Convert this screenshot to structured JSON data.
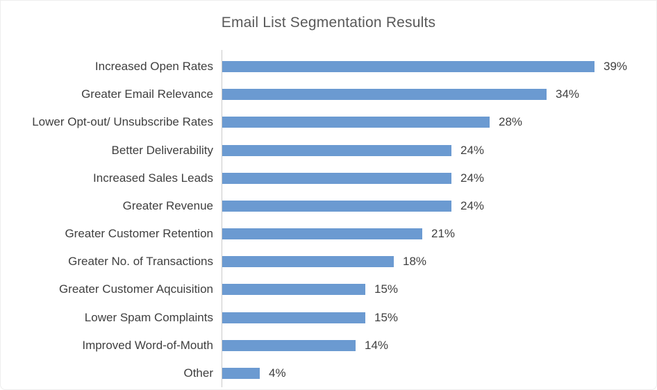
{
  "chart_data": {
    "type": "bar",
    "orientation": "horizontal",
    "title": "Email List Segmentation Results",
    "categories": [
      "Increased Open Rates",
      "Greater Email Relevance",
      "Lower Opt-out/ Unsubscribe Rates",
      "Better Deliverability",
      "Increased Sales Leads",
      "Greater Revenue",
      "Greater Customer Retention",
      "Greater No. of Transactions",
      "Greater Customer Aqcuisition",
      "Lower Spam Complaints",
      "Improved Word-of-Mouth",
      "Other"
    ],
    "values": [
      39,
      34,
      28,
      24,
      24,
      24,
      21,
      18,
      15,
      15,
      14,
      4
    ],
    "value_labels": [
      "39%",
      "34%",
      "28%",
      "24%",
      "24%",
      "24%",
      "21%",
      "18%",
      "15%",
      "15%",
      "14%",
      "4%"
    ],
    "unit": "%",
    "xlim": [
      0,
      45.6
    ],
    "grid": false,
    "legend": false,
    "colors": {
      "bar": "#6b9ad1",
      "title": "#595959",
      "label": "#3f3f3f",
      "axis_line": "#c9c9c9",
      "background": "#ffffff"
    }
  }
}
